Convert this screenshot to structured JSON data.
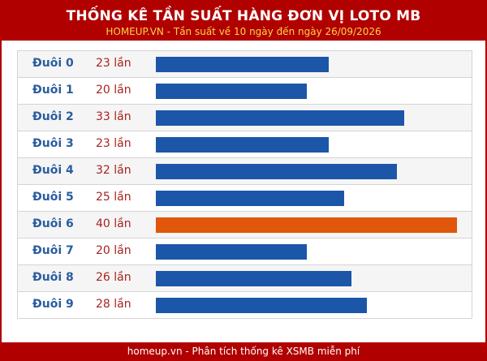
{
  "header": {
    "title": "THỐNG KÊ TẦN SUẤT HÀNG ĐƠN VỊ LOTO MB",
    "subtitle": "HOMEUP.VN - Tần suất về 10 ngày đến ngày 26/09/2026"
  },
  "footer": {
    "text": "homeup.vn - Phân tích thống kê XSMB miễn phí"
  },
  "colors": {
    "bar": "#1c56a8",
    "bar_max": "#e0560a",
    "label": "#2a5d9f",
    "count": "#a8231e",
    "header_bg": "#b00000",
    "subtitle": "#ffd24a"
  },
  "chart_data": {
    "type": "bar",
    "orientation": "horizontal",
    "categories": [
      "Đuôi 0",
      "Đuôi 1",
      "Đuôi 2",
      "Đuôi 3",
      "Đuôi 4",
      "Đuôi 5",
      "Đuôi 6",
      "Đuôi 7",
      "Đuôi 8",
      "Đuôi 9"
    ],
    "values": [
      23,
      20,
      33,
      23,
      32,
      25,
      40,
      20,
      26,
      28
    ],
    "value_labels": [
      "23 lần",
      "20 lần",
      "33 lần",
      "23 lần",
      "32 lần",
      "25 lần",
      "40 lần",
      "20 lần",
      "26 lần",
      "28 lần"
    ],
    "title": "THỐNG KÊ TẦN SUẤT HÀNG ĐƠN VỊ LOTO MB",
    "subtitle": "HOMEUP.VN - Tần suất về 10 ngày đến ngày 26/09/2026",
    "highlight_max": true,
    "grid": false
  }
}
